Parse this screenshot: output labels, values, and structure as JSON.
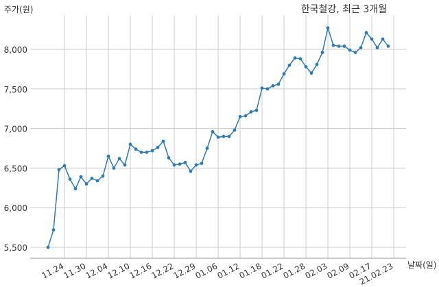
{
  "chart_data": {
    "type": "line",
    "title": "한국철강, 최근 3개월",
    "ylabel": "주가(원)",
    "xlabel": "날짜(일)",
    "ylim": [
      5400,
      8350
    ],
    "yticks": [
      5500,
      6000,
      6500,
      7000,
      7500,
      8000
    ],
    "ytick_labels": [
      "5,500",
      "6,000",
      "6,500",
      "7,000",
      "7,500",
      "8,000"
    ],
    "xtick_labels": [
      "11.24",
      "11.30",
      "12.04",
      "12.10",
      "12.16",
      "12.22",
      "12.29",
      "01.06",
      "01.12",
      "01.18",
      "01.22",
      "01.28",
      "02.03",
      "02.09",
      "02.17",
      "21.02.23"
    ],
    "xtick_index": [
      3,
      7,
      11,
      15,
      19,
      23,
      27,
      31,
      35,
      39,
      43,
      47,
      51,
      55,
      59,
      63
    ],
    "grid": true,
    "line_color": "#2e7bb4",
    "series": [
      {
        "values": [
          5500,
          5720,
          6480,
          6530,
          6360,
          6240,
          6390,
          6300,
          6370,
          6340,
          6400,
          6650,
          6500,
          6620,
          6540,
          6800,
          6740,
          6700,
          6700,
          6720,
          6760,
          6840,
          6630,
          6540,
          6550,
          6570,
          6460,
          6540,
          6560,
          6750,
          6960,
          6890,
          6900,
          6900,
          6980,
          7150,
          7160,
          7210,
          7230,
          7510,
          7500,
          7540,
          7560,
          7690,
          7800,
          7890,
          7880,
          7780,
          7700,
          7810,
          7960,
          8270,
          8050,
          8040,
          8040,
          7990,
          7960,
          8020,
          8210,
          8130,
          8020,
          8130,
          8040
        ]
      }
    ]
  }
}
